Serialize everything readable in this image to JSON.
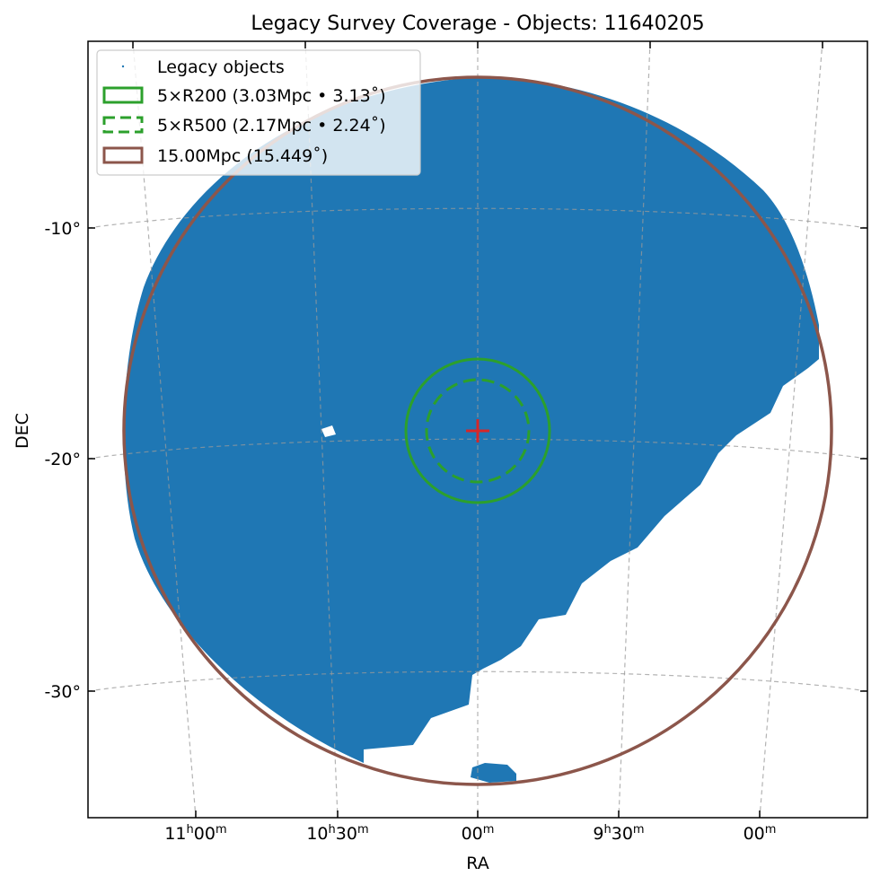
{
  "chart_data": {
    "type": "scatter",
    "title": "Legacy Survey Coverage - Objects: 11640205",
    "xlabel": "RA",
    "ylabel": "DEC",
    "projection": "sky (gnomonic-like), center RA 10h00m, DEC -18.8°",
    "center": {
      "ra": "10h00m",
      "dec": -18.8
    },
    "grid": true,
    "legend_placement": "top-left",
    "x_ticks": [
      {
        "main": "11",
        "sup": "h",
        "rest": "00",
        "sup2": "m"
      },
      {
        "main": "10",
        "sup": "h",
        "rest": "30",
        "sup2": "m"
      },
      {
        "main": "",
        "sup": "",
        "rest": "00",
        "sup2": "m"
      },
      {
        "main": "9",
        "sup": "h",
        "rest": "30",
        "sup2": "m"
      },
      {
        "main": "",
        "sup": "",
        "rest": "00",
        "sup2": "m"
      }
    ],
    "y_ticks": [
      "-10°",
      "-20°",
      "-30°"
    ],
    "legend": [
      {
        "label": "Legacy objects",
        "style": "point",
        "color": "#1f77b4"
      },
      {
        "label": "5×R200 (3.03Mpc • 3.13˚)",
        "style": "solid",
        "color": "#2ca02c"
      },
      {
        "label": "5×R500 (2.17Mpc • 2.24˚)",
        "style": "dashed",
        "color": "#2ca02c"
      },
      {
        "label": "15.00Mpc (15.449˚)",
        "style": "solid",
        "color": "#8c564b"
      }
    ],
    "circles": [
      {
        "name": "5×R200",
        "radius_mpc": 3.03,
        "radius_deg": 3.13,
        "color": "#2ca02c",
        "style": "solid"
      },
      {
        "name": "5×R500",
        "radius_mpc": 2.17,
        "radius_deg": 2.24,
        "color": "#2ca02c",
        "style": "dashed"
      },
      {
        "name": "15.00Mpc",
        "radius_mpc": 15.0,
        "radius_deg": 15.449,
        "color": "#8c564b",
        "style": "solid"
      }
    ],
    "objects_count": 11640205,
    "coverage_color": "#1f77b4",
    "center_marker_color": "#d62728"
  }
}
